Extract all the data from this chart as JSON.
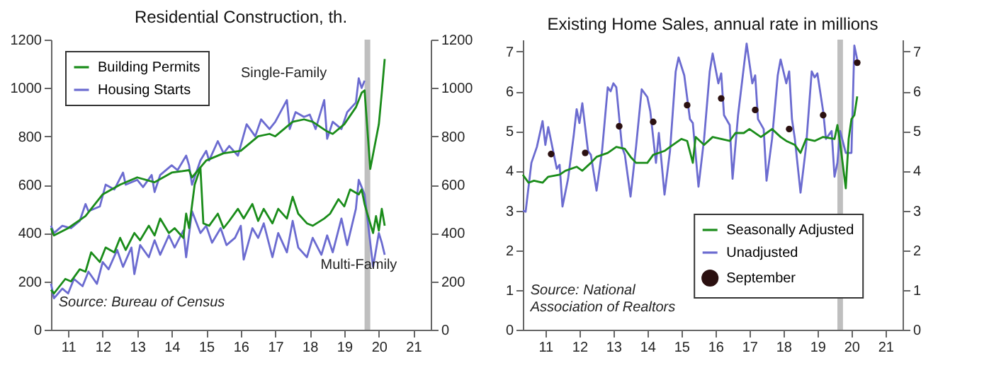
{
  "chart_data": [
    {
      "type": "line",
      "title": "Residential Construction, th.",
      "xlim": [
        "2011-01",
        "2022-01"
      ],
      "xticks": [
        {
          "value": "2011-07",
          "label": "11"
        },
        {
          "value": "2012-07",
          "label": "12"
        },
        {
          "value": "2013-07",
          "label": "13"
        },
        {
          "value": "2014-07",
          "label": "14"
        },
        {
          "value": "2015-07",
          "label": "15"
        },
        {
          "value": "2016-07",
          "label": "16"
        },
        {
          "value": "2017-07",
          "label": "17"
        },
        {
          "value": "2018-07",
          "label": "18"
        },
        {
          "value": "2019-07",
          "label": "19"
        },
        {
          "value": "2020-07",
          "label": "20"
        },
        {
          "value": "2021-07",
          "label": "21"
        }
      ],
      "ylim": [
        0,
        1200
      ],
      "yticks": [
        0,
        200,
        400,
        600,
        800,
        1000,
        1200
      ],
      "y2lim": [
        0,
        1200
      ],
      "y2ticks": [
        0,
        200,
        400,
        600,
        800,
        1000,
        1200
      ],
      "legend": "top left",
      "bands": [
        {
          "axis": "x",
          "from": "2020-02",
          "to": "2020-04",
          "color": "#bfbfbf"
        }
      ],
      "annotations": [
        "Single-Family",
        "Multi-Family",
        "Source: Bureau of Census"
      ],
      "series": [
        {
          "name": "Building Permits",
          "color": "#1a8c1a",
          "x": [
            "2011-01",
            "2011-02",
            "2011-07",
            "2012-01",
            "2012-07",
            "2013-01",
            "2013-07",
            "2014-01",
            "2014-07",
            "2015-01",
            "2015-02",
            "2015-07",
            "2016-01",
            "2016-07",
            "2017-01",
            "2017-05",
            "2017-07",
            "2018-01",
            "2018-05",
            "2018-08",
            "2019-01",
            "2019-03",
            "2019-07",
            "2019-11",
            "2020-01",
            "2020-02",
            "2020-04",
            "2020-07",
            "2020-08",
            "2020-09"
          ],
          "values": [
            420,
            390,
            420,
            470,
            560,
            600,
            630,
            610,
            650,
            660,
            630,
            700,
            730,
            740,
            800,
            810,
            800,
            860,
            870,
            860,
            820,
            810,
            850,
            920,
            980,
            990,
            665,
            850,
            980,
            1120
          ]
        },
        {
          "name": "Housing Starts",
          "color": "#6b6bd0",
          "x": [
            "2011-01",
            "2011-02",
            "2011-05",
            "2011-08",
            "2011-11",
            "2012-01",
            "2012-02",
            "2012-06",
            "2012-08",
            "2012-11",
            "2013-02",
            "2013-03",
            "2013-07",
            "2013-09",
            "2013-12",
            "2014-01",
            "2014-03",
            "2014-07",
            "2014-09",
            "2014-12",
            "2015-01",
            "2015-02",
            "2015-05",
            "2015-07",
            "2015-08",
            "2015-11",
            "2016-01",
            "2016-03",
            "2016-06",
            "2016-09",
            "2016-12",
            "2017-02",
            "2017-05",
            "2017-07",
            "2017-11",
            "2017-12",
            "2018-02",
            "2018-05",
            "2018-07",
            "2018-09",
            "2018-12",
            "2019-01",
            "2019-03",
            "2019-06",
            "2019-08",
            "2019-11",
            "2019-12",
            "2020-01",
            "2020-02"
          ],
          "values": [
            430,
            400,
            430,
            420,
            450,
            520,
            490,
            510,
            600,
            580,
            650,
            600,
            620,
            590,
            640,
            570,
            640,
            680,
            660,
            720,
            680,
            600,
            700,
            740,
            700,
            780,
            730,
            760,
            720,
            850,
            800,
            870,
            830,
            860,
            950,
            830,
            900,
            880,
            890,
            830,
            950,
            790,
            860,
            830,
            900,
            940,
            1040,
            1000,
            1030
          ]
        },
        {
          "color": "#1a8c1a",
          "x": [
            "2011-01",
            "2011-02",
            "2011-06",
            "2011-08",
            "2011-11",
            "2012-01",
            "2012-03",
            "2012-06",
            "2012-08",
            "2012-11",
            "2013-01",
            "2013-03",
            "2013-06",
            "2013-08",
            "2013-11",
            "2014-01",
            "2014-03",
            "2014-06",
            "2014-08",
            "2014-11",
            "2014-12",
            "2015-01",
            "2015-03",
            "2015-05",
            "2015-06",
            "2015-08",
            "2015-11",
            "2016-01",
            "2016-03",
            "2016-06",
            "2016-08",
            "2016-11",
            "2017-01",
            "2017-03",
            "2017-06",
            "2017-08",
            "2017-11",
            "2018-01",
            "2018-03",
            "2018-06",
            "2018-08",
            "2018-12",
            "2019-02",
            "2019-05",
            "2019-07",
            "2019-09",
            "2019-12",
            "2020-01",
            "2020-02",
            "2020-03",
            "2020-05",
            "2020-06",
            "2020-07",
            "2020-08",
            "2020-09"
          ],
          "values": [
            165,
            150,
            210,
            200,
            250,
            240,
            320,
            280,
            340,
            320,
            380,
            330,
            400,
            370,
            430,
            390,
            460,
            400,
            420,
            380,
            480,
            420,
            600,
            670,
            440,
            430,
            480,
            420,
            450,
            500,
            460,
            520,
            450,
            500,
            440,
            500,
            460,
            550,
            480,
            440,
            430,
            460,
            480,
            540,
            510,
            580,
            560,
            580,
            520,
            480,
            400,
            470,
            410,
            500,
            430
          ]
        },
        {
          "color": "#6b6bd0",
          "x": [
            "2011-01",
            "2011-02",
            "2011-05",
            "2011-07",
            "2011-09",
            "2011-12",
            "2012-02",
            "2012-05",
            "2012-07",
            "2012-09",
            "2012-12",
            "2013-02",
            "2013-05",
            "2013-06",
            "2013-08",
            "2013-11",
            "2014-01",
            "2014-03",
            "2014-06",
            "2014-08",
            "2014-11",
            "2014-12",
            "2015-02",
            "2015-05",
            "2015-07",
            "2015-09",
            "2015-12",
            "2016-02",
            "2016-05",
            "2016-07",
            "2016-08",
            "2016-11",
            "2017-01",
            "2017-03",
            "2017-06",
            "2017-08",
            "2017-11",
            "2018-01",
            "2018-03",
            "2018-06",
            "2018-08",
            "2018-11",
            "2019-01",
            "2019-03",
            "2019-06",
            "2019-08",
            "2019-11",
            "2019-12",
            "2020-02",
            "2020-05",
            "2020-07",
            "2020-08",
            "2020-09"
          ],
          "values": [
            190,
            130,
            170,
            150,
            210,
            180,
            240,
            190,
            280,
            250,
            330,
            260,
            340,
            230,
            350,
            300,
            370,
            310,
            390,
            340,
            410,
            300,
            490,
            400,
            430,
            360,
            420,
            350,
            380,
            430,
            290,
            420,
            380,
            440,
            300,
            400,
            320,
            450,
            340,
            300,
            380,
            310,
            390,
            320,
            460,
            350,
            500,
            620,
            560,
            260,
            400,
            360,
            310
          ]
        }
      ]
    },
    {
      "type": "line",
      "title": "Existing Home Sales, annual rate in millions",
      "xlim": [
        "2010-11",
        "2022-01"
      ],
      "xticks": [
        {
          "value": "2011-07",
          "label": "11"
        },
        {
          "value": "2012-07",
          "label": "12"
        },
        {
          "value": "2013-07",
          "label": "13"
        },
        {
          "value": "2014-07",
          "label": "14"
        },
        {
          "value": "2015-07",
          "label": "15"
        },
        {
          "value": "2016-07",
          "label": "16"
        },
        {
          "value": "2017-07",
          "label": "17"
        },
        {
          "value": "2018-07",
          "label": "18"
        },
        {
          "value": "2019-07",
          "label": "19"
        },
        {
          "value": "2020-07",
          "label": "20"
        },
        {
          "value": "2021-07",
          "label": "21"
        }
      ],
      "ylim": [
        0,
        7.3
      ],
      "yticks": [
        0,
        1,
        2,
        3,
        4,
        5,
        6,
        7
      ],
      "y2lim": [
        0,
        7.3
      ],
      "y2ticks": [
        0,
        1,
        2,
        3,
        4,
        5,
        6,
        7
      ],
      "legend": "bottom right",
      "bands": [
        {
          "axis": "x",
          "from": "2020-02",
          "to": "2020-04",
          "color": "#bfbfbf"
        }
      ],
      "annotations": [
        "Source: National\nAssociation of Realtors"
      ],
      "series": [
        {
          "name": "Seasonally Adjusted",
          "color": "#1a8c1a",
          "x": [
            "2010-11",
            "2011-01",
            "2011-03",
            "2011-06",
            "2011-08",
            "2011-12",
            "2012-02",
            "2012-06",
            "2012-08",
            "2012-11",
            "2013-01",
            "2013-05",
            "2013-08",
            "2013-11",
            "2014-01",
            "2014-03",
            "2014-07",
            "2014-09",
            "2015-01",
            "2015-03",
            "2015-07",
            "2015-09",
            "2015-11",
            "2015-12",
            "2016-03",
            "2016-06",
            "2016-09",
            "2016-12",
            "2017-02",
            "2017-05",
            "2017-07",
            "2017-11",
            "2018-01",
            "2018-03",
            "2018-06",
            "2018-08",
            "2018-11",
            "2019-01",
            "2019-03",
            "2019-06",
            "2019-09",
            "2020-01",
            "2020-02",
            "2020-03",
            "2020-05",
            "2020-06",
            "2020-07",
            "2020-08",
            "2020-09"
          ],
          "values": [
            3.9,
            3.7,
            3.75,
            3.7,
            3.85,
            3.9,
            4,
            4.1,
            4,
            4.2,
            4.35,
            4.45,
            4.6,
            4.55,
            4.35,
            4.2,
            4.2,
            4.4,
            4.5,
            4.6,
            4.8,
            4.75,
            4.2,
            4.85,
            4.65,
            4.85,
            4.8,
            4.75,
            4.95,
            4.95,
            5.05,
            4.85,
            4.95,
            5.05,
            4.85,
            4.75,
            4.65,
            4.45,
            4.8,
            4.75,
            4.85,
            4.8,
            5.15,
            4.7,
            3.56,
            4.8,
            5.3,
            5.4,
            5.87
          ]
        },
        {
          "name": "Unadjusted",
          "color": "#6b6bd0",
          "x": [
            "2010-11",
            "2010-12",
            "2011-02",
            "2011-04",
            "2011-06",
            "2011-07",
            "2011-08",
            "2011-10",
            "2011-11",
            "2011-12",
            "2012-01",
            "2012-03",
            "2012-05",
            "2012-06",
            "2012-07",
            "2012-08",
            "2012-10",
            "2012-11",
            "2013-01",
            "2013-03",
            "2013-05",
            "2013-06",
            "2013-07",
            "2013-08",
            "2013-10",
            "2013-11",
            "2014-01",
            "2014-03",
            "2014-05",
            "2014-07",
            "2014-08",
            "2014-10",
            "2014-11",
            "2015-01",
            "2015-03",
            "2015-05",
            "2015-06",
            "2015-08",
            "2015-10",
            "2015-11",
            "2016-01",
            "2016-03",
            "2016-05",
            "2016-06",
            "2016-08",
            "2016-09",
            "2016-10",
            "2016-12",
            "2017-01",
            "2017-03",
            "2017-05",
            "2017-06",
            "2017-08",
            "2017-09",
            "2017-10",
            "2017-12",
            "2018-01",
            "2018-03",
            "2018-05",
            "2018-06",
            "2018-08",
            "2018-09",
            "2018-10",
            "2018-11",
            "2019-01",
            "2019-03",
            "2019-05",
            "2019-06",
            "2019-07",
            "2019-09",
            "2019-10",
            "2019-12",
            "2020-01",
            "2020-02",
            "2020-03",
            "2020-05",
            "2020-07",
            "2020-08",
            "2020-09"
          ],
          "values": [
            3,
            2.97,
            4.2,
            4.6,
            5.25,
            4.65,
            5.1,
            4.4,
            4.05,
            4.15,
            3.1,
            3.8,
            4.9,
            5.55,
            5.2,
            5.7,
            4.5,
            4.4,
            3.5,
            4.5,
            6.1,
            6,
            6.2,
            6.1,
            4.6,
            4.4,
            3.35,
            4.6,
            6.05,
            5.85,
            5.5,
            4.2,
            4.95,
            3.4,
            4.5,
            6.5,
            6.85,
            6.4,
            5.3,
            5.2,
            3.6,
            4.8,
            6.5,
            6.95,
            6.2,
            6.45,
            5.4,
            5.15,
            3.8,
            5.4,
            6.6,
            7.2,
            6.2,
            6.4,
            5.3,
            5.05,
            3.75,
            4.8,
            6.4,
            6.8,
            6.2,
            6.5,
            5.3,
            4.8,
            3.45,
            4.6,
            6.5,
            6.35,
            6.45,
            5.5,
            4.8,
            5,
            3.85,
            4.2,
            5,
            4.45,
            4.45,
            7.15,
            6.8
          ]
        },
        {
          "name": "September",
          "type": "scatter",
          "marker": "circle",
          "color": "#2b1010",
          "x": [
            "2011-09",
            "2012-09",
            "2013-09",
            "2014-09",
            "2015-09",
            "2016-09",
            "2017-09",
            "2018-09",
            "2019-09",
            "2020-09"
          ],
          "values": [
            4.42,
            4.45,
            5.12,
            5.23,
            5.65,
            5.82,
            5.53,
            5.05,
            5.4,
            6.72
          ]
        }
      ]
    }
  ]
}
